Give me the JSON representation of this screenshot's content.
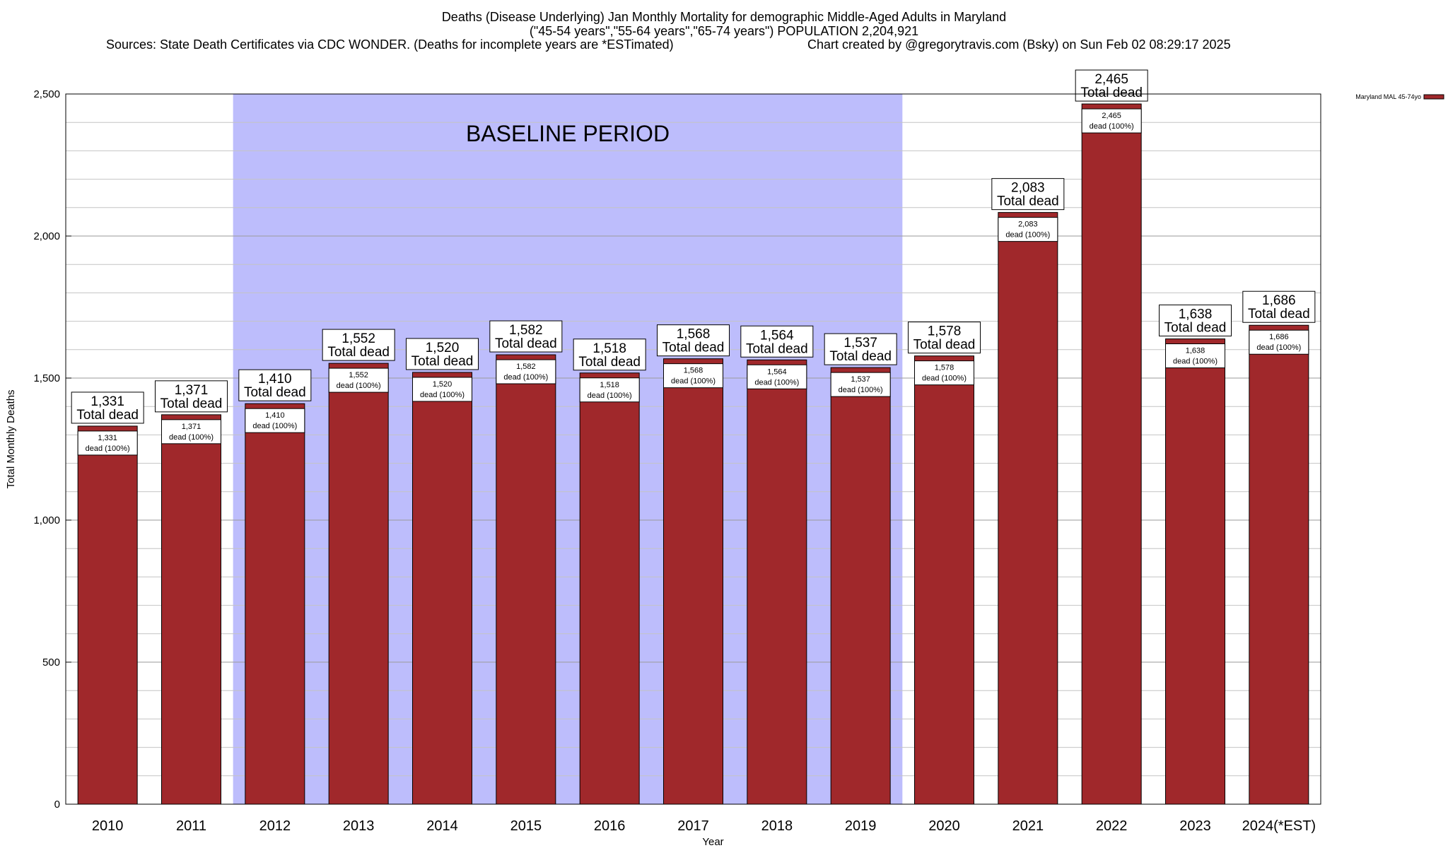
{
  "header": {
    "title": "Deaths (Disease Underlying) Jan Monthly Mortality for demographic Middle-Aged Adults in Maryland",
    "subtitle": "(\"45-54 years\",\"55-64 years\",\"65-74 years\") POPULATION 2,204,921",
    "sources": "Sources: State Death Certificates via CDC WONDER. (Deaths for incomplete years are *ESTimated)",
    "credit": "Chart created by @gregorytravis.com (Bsky) on Sun Feb 02 08:29:17 2025"
  },
  "chart_data": {
    "type": "bar",
    "title": "Deaths (Disease Underlying) Jan Monthly Mortality for demographic Middle-Aged Adults in Maryland",
    "xlabel": "Year",
    "ylabel": "Total Monthly Deaths",
    "ylim": [
      0,
      2500
    ],
    "yticks": [
      0,
      500,
      1000,
      1500,
      2000,
      2500
    ],
    "ytick_labels": [
      "0",
      "500",
      "1,000",
      "1,500",
      "2,000",
      "2,500"
    ],
    "minor_grid_step": 100,
    "grid": true,
    "legend": {
      "placement": "top-right",
      "label": "Maryland MAL 45-74yo"
    },
    "categories": [
      "2010",
      "2011",
      "2012",
      "2013",
      "2014",
      "2015",
      "2016",
      "2017",
      "2018",
      "2019",
      "2020",
      "2021",
      "2022",
      "2023",
      "2024(*EST)"
    ],
    "series": [
      {
        "name": "Maryland MAL 45-74yo",
        "color": "#a0282b",
        "values": [
          1331,
          1371,
          1410,
          1552,
          1520,
          1582,
          1518,
          1568,
          1564,
          1537,
          1578,
          2083,
          2465,
          1638,
          1686
        ]
      }
    ],
    "value_labels": [
      "1,331",
      "1,371",
      "1,410",
      "1,552",
      "1,520",
      "1,582",
      "1,518",
      "1,568",
      "1,564",
      "1,537",
      "1,578",
      "2,083",
      "2,465",
      "1,638",
      "1,686"
    ],
    "total_label_suffix": "Total dead",
    "inner_label_suffix": "dead (100%)",
    "baseline": {
      "label": "BASELINE PERIOD",
      "from": "2012",
      "to": "2019",
      "color": "#bdbdfc"
    }
  }
}
